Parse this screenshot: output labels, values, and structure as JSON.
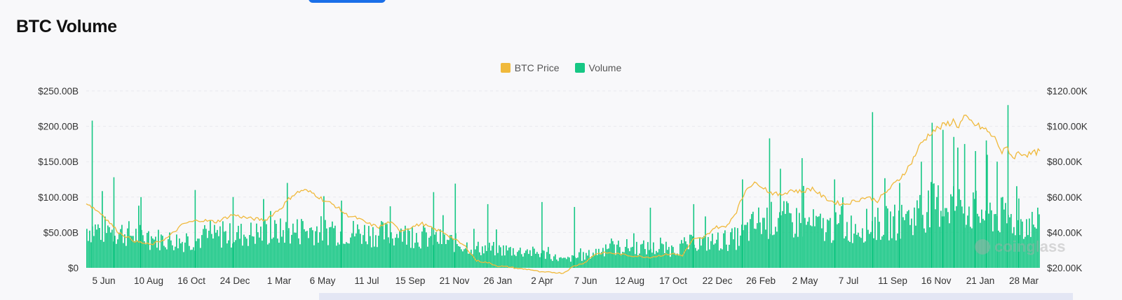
{
  "page": {
    "title": "BTC Volume",
    "watermark": "coinglass"
  },
  "chart_data": {
    "type": "bar",
    "title": "BTC Volume",
    "legend_position": "top-center",
    "grid": true,
    "colors": {
      "price": "#f0b93b",
      "volume": "#16c784"
    },
    "x_ticks": [
      "5 Jun",
      "10 Aug",
      "16 Oct",
      "24 Dec",
      "1 Mar",
      "6 May",
      "11 Jul",
      "15 Sep",
      "21 Nov",
      "26 Jan",
      "2 Apr",
      "7 Jun",
      "12 Aug",
      "17 Oct",
      "22 Dec",
      "26 Feb",
      "2 May",
      "7 Jul",
      "11 Sep",
      "16 Nov",
      "21 Jan",
      "28 Mar"
    ],
    "y_left": {
      "ticks": [
        "$0",
        "$50.00B",
        "$100.00B",
        "$150.00B",
        "$200.00B",
        "$250.00B"
      ],
      "values": [
        0,
        50,
        100,
        150,
        200,
        250
      ],
      "range": [
        0,
        250
      ],
      "unit": "B USD"
    },
    "y_right": {
      "ticks": [
        "$20.00K",
        "$40.00K",
        "$60.00K",
        "$80.00K",
        "$100.00K",
        "$120.00K"
      ],
      "values": [
        20,
        40,
        60,
        80,
        100,
        120
      ],
      "range": [
        20,
        120
      ],
      "unit": "K USD"
    },
    "series": [
      {
        "name": "BTC Price",
        "kind": "line",
        "axis": "right",
        "points": [
          [
            0,
            57
          ],
          [
            3,
            50
          ],
          [
            6,
            40
          ],
          [
            9,
            35
          ],
          [
            12,
            33
          ],
          [
            15,
            37
          ],
          [
            18,
            45
          ],
          [
            21,
            47
          ],
          [
            24,
            46
          ],
          [
            27,
            50
          ],
          [
            30,
            48
          ],
          [
            33,
            47
          ],
          [
            36,
            54
          ],
          [
            38,
            61
          ],
          [
            40,
            64
          ],
          [
            42,
            62
          ],
          [
            44,
            58
          ],
          [
            46,
            55
          ],
          [
            48,
            50
          ],
          [
            50,
            48
          ],
          [
            52,
            45
          ],
          [
            54,
            43
          ],
          [
            56,
            46
          ],
          [
            58,
            41
          ],
          [
            60,
            43
          ],
          [
            62,
            45
          ],
          [
            64,
            42
          ],
          [
            66,
            40
          ],
          [
            68,
            36
          ],
          [
            70,
            32
          ],
          [
            72,
            24
          ],
          [
            74,
            23
          ],
          [
            76,
            21
          ],
          [
            78,
            20.5
          ],
          [
            80,
            19.5
          ],
          [
            82,
            19
          ],
          [
            84,
            17.5
          ],
          [
            86,
            17.5
          ],
          [
            88,
            17
          ],
          [
            90,
            21
          ],
          [
            92,
            23
          ],
          [
            94,
            28
          ],
          [
            96,
            28.5
          ],
          [
            98,
            28
          ],
          [
            100,
            27
          ],
          [
            102,
            26.5
          ],
          [
            104,
            26
          ],
          [
            106,
            27
          ],
          [
            108,
            28
          ],
          [
            110,
            27
          ],
          [
            112,
            36
          ],
          [
            114,
            37
          ],
          [
            116,
            43
          ],
          [
            118,
            43
          ],
          [
            120,
            52
          ],
          [
            122,
            66
          ],
          [
            124,
            68
          ],
          [
            126,
            63
          ],
          [
            128,
            61
          ],
          [
            130,
            64
          ],
          [
            132,
            63
          ],
          [
            134,
            65
          ],
          [
            136,
            60
          ],
          [
            138,
            57
          ],
          [
            140,
            56
          ],
          [
            142,
            58
          ],
          [
            144,
            60
          ],
          [
            146,
            58
          ],
          [
            148,
            64
          ],
          [
            150,
            70
          ],
          [
            152,
            78
          ],
          [
            154,
            90
          ],
          [
            156,
            97
          ],
          [
            158,
            100
          ],
          [
            160,
            103
          ],
          [
            161,
            100
          ],
          [
            162,
            105
          ],
          [
            164,
            101
          ],
          [
            166,
            98
          ],
          [
            168,
            92
          ],
          [
            169,
            85
          ],
          [
            170,
            88
          ],
          [
            171,
            82
          ],
          [
            172,
            85
          ],
          [
            174,
            84
          ],
          [
            176,
            86
          ]
        ]
      },
      {
        "name": "Volume",
        "kind": "bar",
        "axis": "left",
        "periods": 176,
        "envelope": [
          [
            0,
            60
          ],
          [
            6,
            55
          ],
          [
            12,
            45
          ],
          [
            18,
            40
          ],
          [
            24,
            48
          ],
          [
            30,
            52
          ],
          [
            36,
            55
          ],
          [
            42,
            58
          ],
          [
            48,
            55
          ],
          [
            54,
            52
          ],
          [
            60,
            50
          ],
          [
            66,
            42
          ],
          [
            72,
            30
          ],
          [
            78,
            27
          ],
          [
            84,
            22
          ],
          [
            88,
            12
          ],
          [
            92,
            18
          ],
          [
            96,
            30
          ],
          [
            100,
            32
          ],
          [
            104,
            30
          ],
          [
            108,
            28
          ],
          [
            112,
            38
          ],
          [
            116,
            40
          ],
          [
            120,
            45
          ],
          [
            124,
            70
          ],
          [
            128,
            75
          ],
          [
            132,
            68
          ],
          [
            136,
            62
          ],
          [
            140,
            60
          ],
          [
            144,
            65
          ],
          [
            148,
            68
          ],
          [
            152,
            75
          ],
          [
            156,
            95
          ],
          [
            160,
            100
          ],
          [
            164,
            85
          ],
          [
            168,
            80
          ],
          [
            172,
            70
          ],
          [
            176,
            65
          ]
        ],
        "spikes": [
          [
            1,
            208
          ],
          [
            5,
            128
          ],
          [
            10,
            100
          ],
          [
            20,
            110
          ],
          [
            27,
            100
          ],
          [
            37,
            120
          ],
          [
            47,
            95
          ],
          [
            56,
            87
          ],
          [
            64,
            107
          ],
          [
            68,
            119
          ],
          [
            74,
            90
          ],
          [
            84,
            93
          ],
          [
            90,
            86
          ],
          [
            104,
            85
          ],
          [
            112,
            90
          ],
          [
            121,
            125
          ],
          [
            126,
            183
          ],
          [
            128,
            140
          ],
          [
            132,
            155
          ],
          [
            138,
            125
          ],
          [
            145,
            220
          ],
          [
            150,
            120
          ],
          [
            154,
            150
          ],
          [
            156,
            205
          ],
          [
            158,
            195
          ],
          [
            160,
            185
          ],
          [
            162,
            175
          ],
          [
            164,
            165
          ],
          [
            166,
            180
          ],
          [
            168,
            150
          ],
          [
            170,
            230
          ],
          [
            172,
            98
          ]
        ]
      }
    ]
  }
}
